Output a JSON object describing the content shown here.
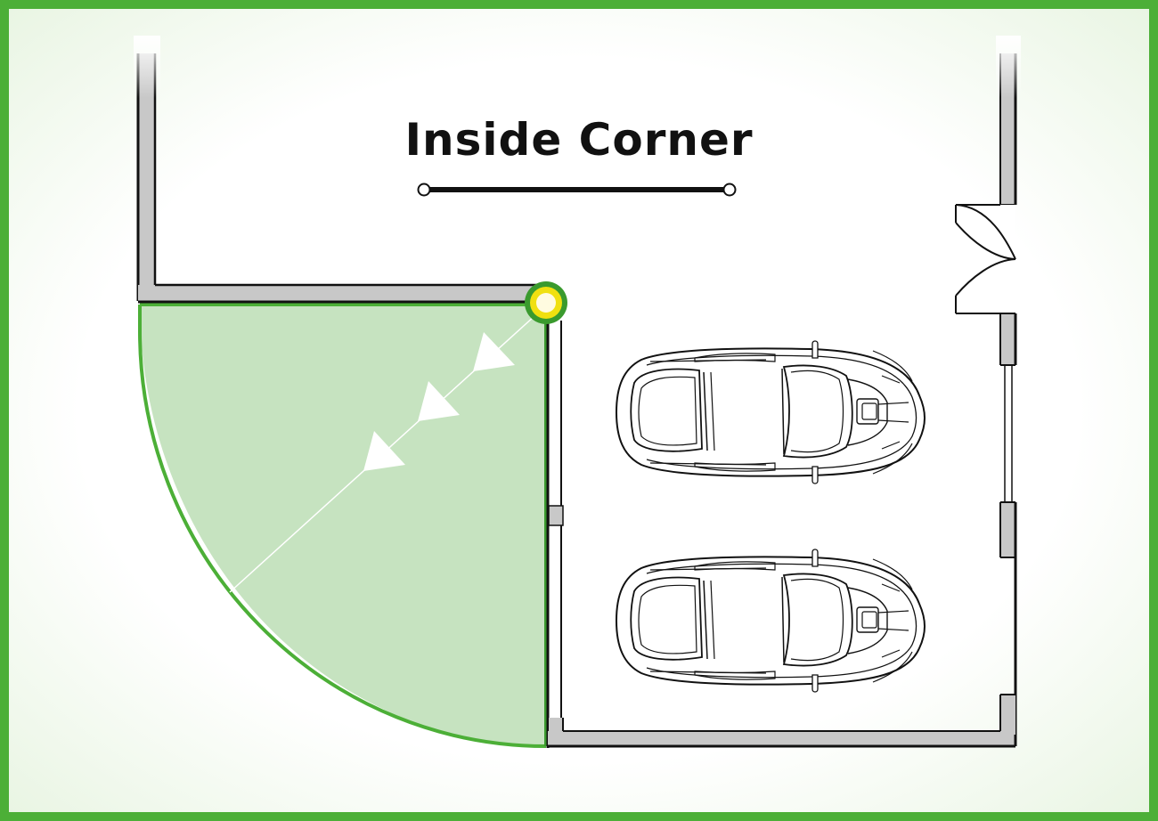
{
  "title": "Inside Corner",
  "colors": {
    "frame_border": "#4caf37",
    "zone_fill": "#c6e3c0",
    "zone_stroke": "#4caf37",
    "wall_fill": "#c8c8c8",
    "wall_stroke": "#111111",
    "marker_ring": "#3a9a2e",
    "marker_fill": "#f0e010",
    "marker_center": "#fffbe0"
  },
  "icons": {
    "corner_marker": "corner-marker-icon",
    "car": "car-icon",
    "door": "double-door-icon",
    "arrow": "arrow-icon"
  }
}
